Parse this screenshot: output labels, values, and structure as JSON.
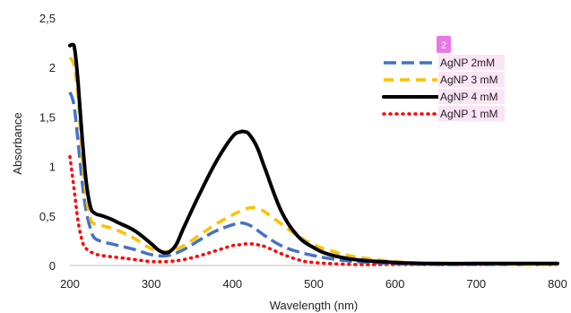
{
  "chart_data": {
    "type": "line",
    "title": "",
    "xlabel": "Wavelength (nm)",
    "ylabel": "Absorbance",
    "xlim": [
      200,
      800
    ],
    "ylim": [
      0,
      2.5
    ],
    "x_ticks": [
      "200",
      "300",
      "400",
      "500",
      "600",
      "700",
      "800"
    ],
    "y_ticks": [
      "0",
      "0,5",
      "1",
      "1,5",
      "2",
      "2,5"
    ],
    "grid": false,
    "legend_position": "top-right",
    "legend_badge": "2",
    "series": [
      {
        "name": "AgNP 2mM",
        "color": "#4472C4",
        "dash": "long-dash-dot",
        "x": [
          200,
          205,
          210,
          215,
          220,
          225,
          230,
          240,
          250,
          260,
          280,
          300,
          320,
          340,
          360,
          380,
          400,
          410,
          420,
          430,
          440,
          460,
          480,
          500,
          520,
          550,
          600,
          650,
          700,
          750,
          800
        ],
        "y": [
          1.75,
          1.62,
          1.25,
          0.85,
          0.55,
          0.38,
          0.28,
          0.24,
          0.22,
          0.2,
          0.16,
          0.11,
          0.1,
          0.16,
          0.26,
          0.35,
          0.41,
          0.43,
          0.41,
          0.36,
          0.3,
          0.2,
          0.14,
          0.1,
          0.07,
          0.04,
          0.02,
          0.01,
          0.01,
          0.01,
          0.01
        ]
      },
      {
        "name": "AgNP 3 mM",
        "color": "#FFC000",
        "dash": "dash",
        "x": [
          200,
          205,
          210,
          215,
          220,
          225,
          230,
          240,
          250,
          260,
          280,
          300,
          320,
          340,
          360,
          380,
          400,
          410,
          420,
          430,
          440,
          460,
          480,
          500,
          520,
          550,
          600,
          650,
          700,
          750,
          800
        ],
        "y": [
          2.1,
          2.02,
          1.7,
          1.1,
          0.7,
          0.48,
          0.42,
          0.4,
          0.38,
          0.35,
          0.27,
          0.17,
          0.14,
          0.2,
          0.31,
          0.42,
          0.51,
          0.55,
          0.58,
          0.58,
          0.54,
          0.42,
          0.3,
          0.21,
          0.15,
          0.09,
          0.04,
          0.02,
          0.02,
          0.01,
          0.01
        ]
      },
      {
        "name": "AgNP 4 mM",
        "color": "#000000",
        "dash": "solid",
        "x": [
          200,
          203,
          206,
          210,
          215,
          220,
          225,
          230,
          240,
          250,
          260,
          280,
          300,
          310,
          320,
          330,
          340,
          360,
          380,
          400,
          410,
          415,
          420,
          430,
          440,
          460,
          480,
          500,
          520,
          550,
          600,
          650,
          700,
          750,
          800
        ],
        "y": [
          2.22,
          2.23,
          2.18,
          1.85,
          1.3,
          0.85,
          0.6,
          0.53,
          0.5,
          0.47,
          0.43,
          0.35,
          0.22,
          0.15,
          0.13,
          0.2,
          0.38,
          0.73,
          1.05,
          1.3,
          1.35,
          1.35,
          1.33,
          1.2,
          0.98,
          0.55,
          0.3,
          0.18,
          0.11,
          0.06,
          0.03,
          0.02,
          0.02,
          0.02,
          0.02
        ]
      },
      {
        "name": "AgNP 1 mM",
        "color": "#FF0000",
        "dash": "dotted",
        "x": [
          200,
          205,
          210,
          215,
          220,
          230,
          240,
          260,
          280,
          300,
          320,
          340,
          360,
          380,
          400,
          410,
          420,
          430,
          440,
          460,
          480,
          500,
          550,
          600,
          700,
          800
        ],
        "y": [
          1.1,
          0.78,
          0.45,
          0.25,
          0.17,
          0.12,
          0.1,
          0.08,
          0.06,
          0.04,
          0.04,
          0.06,
          0.1,
          0.15,
          0.2,
          0.21,
          0.22,
          0.21,
          0.19,
          0.12,
          0.06,
          0.03,
          0.01,
          0.01,
          0.01,
          0.01
        ]
      }
    ]
  }
}
